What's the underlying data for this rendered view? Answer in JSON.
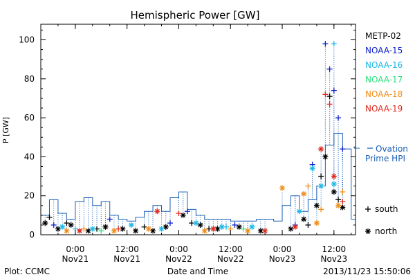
{
  "footer": {
    "plot_credit": "Plot: CCMC",
    "xlabel": "Date and Time",
    "timestamp": "2013/11/23 15:50:06"
  },
  "chart_data": {
    "type": "scatter",
    "title": "Hemispheric Power [GW]",
    "ylabel": "P [GW]",
    "xlabel": "Date and Time",
    "xlim": [
      "2013-11-20T16:00",
      "2013-11-23T17:00"
    ],
    "ylim": [
      0,
      108
    ],
    "x_ticks": [
      {
        "x": "2013-11-21T00:00",
        "time": "0:00",
        "date": "Nov21"
      },
      {
        "x": "2013-11-21T12:00",
        "time": "12:00",
        "date": "Nov21"
      },
      {
        "x": "2013-11-22T00:00",
        "time": "0:00",
        "date": "Nov22"
      },
      {
        "x": "2013-11-22T12:00",
        "time": "12:00",
        "date": "Nov22"
      },
      {
        "x": "2013-11-23T00:00",
        "time": "0:00",
        "date": "Nov23"
      },
      {
        "x": "2013-11-23T12:00",
        "time": "12:00",
        "date": "Nov23"
      }
    ],
    "y_ticks": [
      0,
      20,
      40,
      60,
      80,
      100
    ],
    "legend_placement": "right",
    "marker_legend": [
      {
        "symbol": "+",
        "label": "south"
      },
      {
        "symbol": "*",
        "label": "north"
      }
    ],
    "ovation_label": [
      "Ovation",
      "Prime HPI"
    ],
    "ovation_color": "#1a5fb4",
    "ovation": {
      "x": [
        "2013-11-20T16:00",
        "2013-11-20T18:00",
        "2013-11-20T20:00",
        "2013-11-20T22:00",
        "2013-11-21T00:00",
        "2013-11-21T02:00",
        "2013-11-21T04:00",
        "2013-11-21T06:00",
        "2013-11-21T08:00",
        "2013-11-21T10:00",
        "2013-11-21T12:00",
        "2013-11-21T14:00",
        "2013-11-21T16:00",
        "2013-11-21T18:00",
        "2013-11-21T20:00",
        "2013-11-21T22:00",
        "2013-11-22T00:00",
        "2013-11-22T02:00",
        "2013-11-22T04:00",
        "2013-11-22T06:00",
        "2013-11-22T08:00",
        "2013-11-22T10:00",
        "2013-11-22T12:00",
        "2013-11-22T14:00",
        "2013-11-22T16:00",
        "2013-11-22T18:00",
        "2013-11-22T20:00",
        "2013-11-22T22:00",
        "2013-11-23T00:00",
        "2013-11-23T02:00",
        "2013-11-23T04:00",
        "2013-11-23T06:00",
        "2013-11-23T08:00",
        "2013-11-23T10:00",
        "2013-11-23T12:00",
        "2013-11-23T14:00",
        "2013-11-23T16:00"
      ],
      "y": [
        10,
        18,
        11,
        8,
        17,
        19,
        15,
        17,
        10,
        8,
        7,
        9,
        12,
        15,
        12,
        19,
        22,
        13,
        10,
        8,
        8,
        8,
        7,
        7,
        7,
        8,
        8,
        7,
        15,
        20,
        12,
        18,
        25,
        46,
        52,
        44,
        8
      ]
    },
    "series": [
      {
        "name": "METP-02",
        "color": "#000000",
        "symbol": "*",
        "x": [
          "2013-11-20T17:00",
          "2013-11-20T20:00",
          "2013-11-20T23:00",
          "2013-11-21T03:00",
          "2013-11-21T07:00",
          "2013-11-21T11:00",
          "2013-11-21T14:00",
          "2013-11-21T18:00",
          "2013-11-21T21:00",
          "2013-11-22T01:00",
          "2013-11-22T05:00",
          "2013-11-22T09:00",
          "2013-11-22T14:00",
          "2013-11-22T19:00",
          "2013-11-23T02:00",
          "2013-11-23T05:00",
          "2013-11-23T08:00",
          "2013-11-23T10:00",
          "2013-11-23T12:00",
          "2013-11-23T14:00"
        ],
        "y": [
          6,
          3,
          5,
          2,
          4,
          3,
          2,
          2,
          4,
          10,
          5,
          3,
          4,
          2,
          3,
          8,
          15,
          40,
          22,
          14
        ]
      },
      {
        "name": "METP-02",
        "color": "#000000",
        "symbol": "+",
        "x": [
          "2013-11-20T18:00",
          "2013-11-20T22:00",
          "2013-11-21T05:00",
          "2013-11-21T16:00",
          "2013-11-22T03:00",
          "2013-11-22T07:00",
          "2013-11-23T06:00",
          "2013-11-23T09:00",
          "2013-11-23T11:00",
          "2013-11-23T13:00"
        ],
        "y": [
          9,
          6,
          3,
          4,
          6,
          3,
          5,
          30,
          71,
          18
        ]
      },
      {
        "name": "NOAA-15",
        "color": "#0a1fc8",
        "symbol": "+",
        "x": [
          "2013-11-20T19:00",
          "2013-11-21T08:00",
          "2013-11-21T22:00",
          "2013-11-22T02:00",
          "2013-11-22T13:00",
          "2013-11-23T03:00",
          "2013-11-23T07:00",
          "2013-11-23T10:00",
          "2013-11-23T11:00",
          "2013-11-23T12:00",
          "2013-11-23T13:00",
          "2013-11-23T14:00"
        ],
        "y": [
          5,
          8,
          6,
          12,
          5,
          5,
          36,
          98,
          85,
          74,
          60,
          44
        ]
      },
      {
        "name": "NOAA-16",
        "color": "#19b8e6",
        "symbol": "*",
        "x": [
          "2013-11-20T21:00",
          "2013-11-21T04:00",
          "2013-11-21T13:00",
          "2013-11-21T20:00",
          "2013-11-22T04:00",
          "2013-11-22T10:00",
          "2013-11-22T17:00",
          "2013-11-23T04:00",
          "2013-11-23T07:00",
          "2013-11-23T09:00",
          "2013-11-23T12:00"
        ],
        "y": [
          4,
          3,
          5,
          3,
          6,
          4,
          4,
          12,
          34,
          25,
          26
        ]
      },
      {
        "name": "NOAA-16",
        "color": "#19b8e6",
        "symbol": "+",
        "x": [
          "2013-11-21T00:00",
          "2013-11-22T11:00",
          "2013-11-23T12:00"
        ],
        "y": [
          3,
          4,
          98
        ]
      },
      {
        "name": "NOAA-17",
        "color": "#2ae07a",
        "symbol": "+",
        "x": [
          "2013-11-21T06:00",
          "2013-11-22T15:00"
        ],
        "y": [
          2,
          3
        ]
      },
      {
        "name": "NOAA-18",
        "color": "#f08c16",
        "symbol": "*",
        "x": [
          "2013-11-20T22:00",
          "2013-11-21T09:00",
          "2013-11-21T17:00",
          "2013-11-22T06:00",
          "2013-11-22T16:00",
          "2013-11-23T00:00",
          "2013-11-23T05:00",
          "2013-11-23T08:00",
          "2013-11-23T13:00"
        ],
        "y": [
          2,
          2,
          3,
          2,
          2,
          24,
          21,
          6,
          15
        ]
      },
      {
        "name": "NOAA-18",
        "color": "#f08c16",
        "symbol": "+",
        "x": [
          "2013-11-21T02:00",
          "2013-11-22T12:00",
          "2013-11-23T06:00",
          "2013-11-23T09:00",
          "2013-11-23T14:00"
        ],
        "y": [
          3,
          3,
          25,
          13,
          22
        ]
      },
      {
        "name": "NOAA-19",
        "color": "#e0281e",
        "symbol": "*",
        "x": [
          "2013-11-21T01:00",
          "2013-11-21T19:00",
          "2013-11-22T08:00",
          "2013-11-22T20:00",
          "2013-11-23T03:00",
          "2013-11-23T09:00",
          "2013-11-23T12:00"
        ],
        "y": [
          2,
          12,
          3,
          2,
          4,
          44,
          30
        ]
      },
      {
        "name": "NOAA-19",
        "color": "#e0281e",
        "symbol": "+",
        "x": [
          "2013-11-21T10:00",
          "2013-11-22T00:00",
          "2013-11-23T10:00",
          "2013-11-23T11:00",
          "2013-11-23T14:00"
        ],
        "y": [
          3,
          11,
          72,
          67,
          17
        ]
      }
    ],
    "legend": [
      {
        "name": "METP-02",
        "color": "#000000"
      },
      {
        "name": "NOAA-15",
        "color": "#0a1fc8"
      },
      {
        "name": "NOAA-16",
        "color": "#19b8e6"
      },
      {
        "name": "NOAA-17",
        "color": "#2ae07a"
      },
      {
        "name": "NOAA-18",
        "color": "#f08c16"
      },
      {
        "name": "NOAA-19",
        "color": "#e0281e"
      }
    ]
  }
}
